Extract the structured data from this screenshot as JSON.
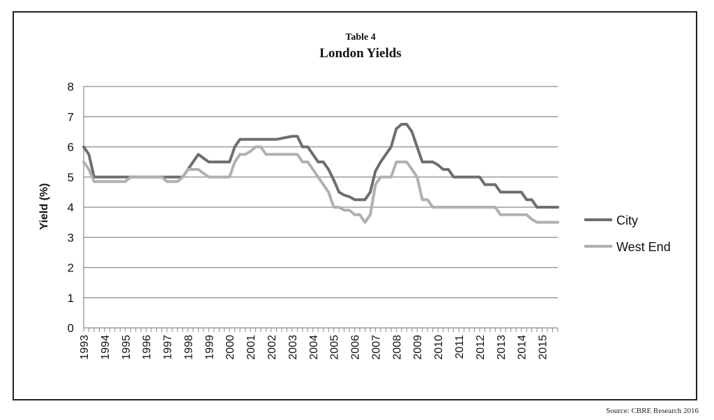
{
  "chart_data": {
    "type": "line",
    "table_label": "Table 4",
    "title": "London Yields",
    "ylabel": "Yield (%)",
    "xlabel": "",
    "ylim": [
      0,
      8
    ],
    "yticks": [
      "0",
      "1",
      "2",
      "3",
      "4",
      "5",
      "6",
      "7",
      "8"
    ],
    "xlim": [
      1993,
      2015.75
    ],
    "xticks": [
      "1993",
      "1994",
      "1995",
      "1996",
      "1997",
      "1998",
      "1999",
      "2000",
      "2001",
      "2002",
      "2003",
      "2004",
      "2005",
      "2006",
      "2007",
      "2008",
      "2009",
      "2010",
      "2011",
      "2012",
      "2013",
      "2014",
      "2015"
    ],
    "grid": "horizontal",
    "legend_position": "right",
    "series": [
      {
        "name": "City",
        "color": "#6e6e6e",
        "x": [
          1993,
          1993.25,
          1993.5,
          1994,
          1995,
          1997,
          1997.25,
          1997.75,
          1998,
          1998.25,
          1998.5,
          1999,
          1999.75,
          2000,
          2000.25,
          2000.5,
          2002,
          2002.25,
          2003,
          2003.25,
          2003.5,
          2003.75,
          2004,
          2004.25,
          2004.5,
          2004.75,
          2005,
          2005.25,
          2005.5,
          2005.75,
          2006,
          2006.5,
          2006.75,
          2007,
          2007.25,
          2007.5,
          2007.75,
          2008,
          2008.25,
          2008.5,
          2008.75,
          2009,
          2009.25,
          2009.5,
          2009.75,
          2010,
          2010.25,
          2010.5,
          2010.75,
          2011,
          2011.75,
          2012,
          2012.25,
          2012.75,
          2013,
          2013.75,
          2014,
          2014.25,
          2014.5,
          2014.75,
          2015.75
        ],
        "values": [
          6.0,
          5.75,
          5.0,
          5.0,
          5.0,
          5.0,
          5.0,
          5.0,
          5.25,
          5.5,
          5.75,
          5.5,
          5.5,
          5.5,
          6.0,
          6.25,
          6.25,
          6.25,
          6.35,
          6.35,
          6.0,
          6.0,
          5.75,
          5.5,
          5.5,
          5.25,
          4.9,
          4.5,
          4.4,
          4.35,
          4.25,
          4.25,
          4.5,
          5.2,
          5.5,
          5.75,
          6.0,
          6.6,
          6.75,
          6.75,
          6.5,
          6.0,
          5.5,
          5.5,
          5.5,
          5.4,
          5.25,
          5.25,
          5.0,
          5.0,
          5.0,
          5.0,
          4.75,
          4.75,
          4.5,
          4.5,
          4.5,
          4.25,
          4.25,
          4.0,
          4.0
        ]
      },
      {
        "name": "West End",
        "color": "#b0b0b0",
        "x": [
          1993,
          1993.25,
          1993.5,
          1995,
          1995.25,
          1996.75,
          1997,
          1997.5,
          1997.75,
          1998,
          1998.25,
          1998.5,
          1999,
          1999.75,
          2000,
          2000.25,
          2000.5,
          2000.75,
          2001,
          2001.25,
          2001.5,
          2001.75,
          2003,
          2003.25,
          2003.5,
          2003.75,
          2004,
          2004.25,
          2004.5,
          2004.75,
          2005,
          2005.25,
          2005.5,
          2005.75,
          2006,
          2006.25,
          2006.5,
          2006.75,
          2007,
          2007.25,
          2007.5,
          2007.75,
          2008,
          2008.25,
          2008.5,
          2008.75,
          2009,
          2009.25,
          2009.5,
          2009.75,
          2010,
          2012.5,
          2012.75,
          2013,
          2013.75,
          2014,
          2014.25,
          2014.5,
          2014.75,
          2015.75
        ],
        "values": [
          5.5,
          5.25,
          4.85,
          4.85,
          5.0,
          5.0,
          4.85,
          4.85,
          5.0,
          5.25,
          5.25,
          5.25,
          5.0,
          5.0,
          5.0,
          5.5,
          5.75,
          5.75,
          5.85,
          6.0,
          6.0,
          5.75,
          5.75,
          5.75,
          5.5,
          5.5,
          5.25,
          5.0,
          4.75,
          4.5,
          4.0,
          4.0,
          3.9,
          3.9,
          3.75,
          3.75,
          3.5,
          3.75,
          4.75,
          5.0,
          5.0,
          5.0,
          5.5,
          5.5,
          5.5,
          5.25,
          5.0,
          4.25,
          4.25,
          4.0,
          4.0,
          4.0,
          4.0,
          3.75,
          3.75,
          3.75,
          3.75,
          3.6,
          3.5,
          3.5
        ]
      }
    ]
  },
  "footer": {
    "source": "Source: CBRE  Research 2016"
  }
}
